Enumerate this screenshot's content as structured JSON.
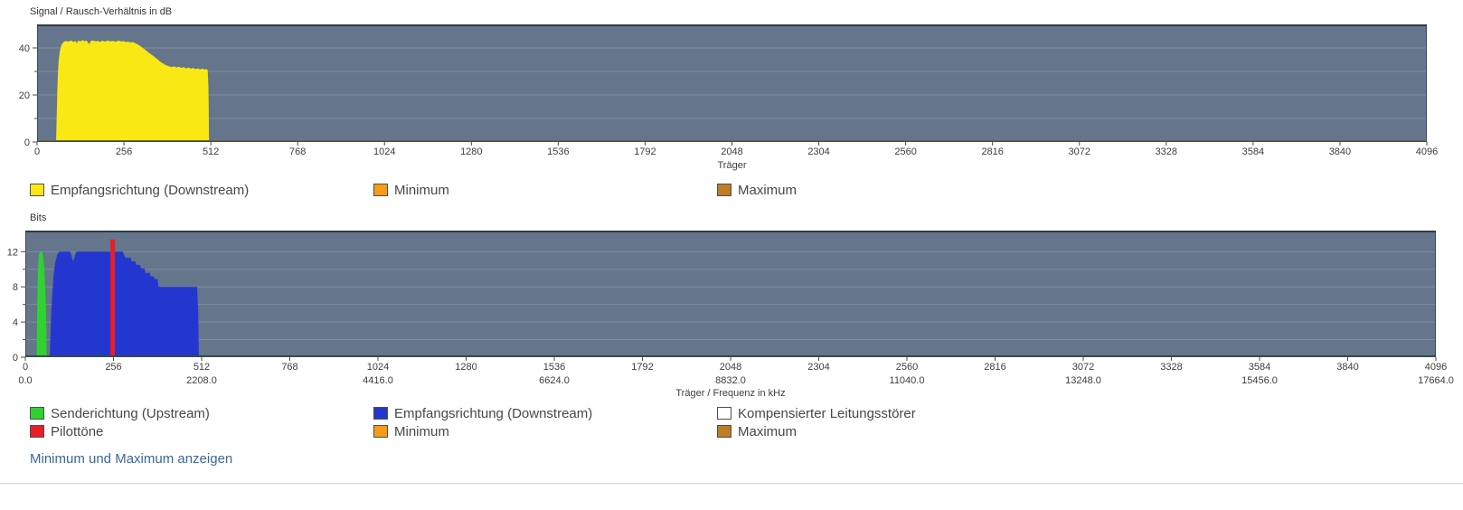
{
  "colors": {
    "plot_background": "#64758c",
    "plot_border": "#3f4956",
    "plot_border_top": "#313a46",
    "link": "#3a689b",
    "yellow": "#f9e814",
    "green": "#2fd32f",
    "blue": "#2337d0",
    "red": "#ec1c24",
    "orange": "#f59c14",
    "brown": "#c07c22",
    "white": "#ffffff"
  },
  "link": {
    "label": "Minimum und Maximum anzeigen"
  },
  "chart_data": [
    {
      "type": "area",
      "title": "Signal / Rausch-Verhältnis in dB",
      "xlabel": "Träger",
      "ylabel": "Signal / Rausch-Verhältnis in dB",
      "xlim": [
        0,
        4096
      ],
      "ylim": [
        0,
        50
      ],
      "xticks": [
        0,
        256,
        512,
        768,
        1024,
        1280,
        1536,
        1792,
        2048,
        2304,
        2560,
        2816,
        3072,
        3328,
        3584,
        3840,
        4096
      ],
      "yticks": [
        0,
        20,
        40
      ],
      "yticks_minor": [
        10,
        30
      ],
      "grid": "horizontal",
      "legend_position": "below",
      "baseline_color": "#6f682b",
      "series": [
        {
          "name": "Empfangsrichtung (Downstream)",
          "color": "#f9e814",
          "type": "area",
          "points": [
            [
              56,
              0
            ],
            [
              58,
              12
            ],
            [
              60,
              24
            ],
            [
              62,
              31
            ],
            [
              64,
              35
            ],
            [
              67,
              38.5
            ],
            [
              70,
              40.5
            ],
            [
              74,
              41.8
            ],
            [
              79,
              42.6
            ],
            [
              85,
              43
            ],
            [
              92,
              42.7
            ],
            [
              100,
              43.1
            ],
            [
              108,
              42.6
            ],
            [
              114,
              43
            ],
            [
              117,
              41.9
            ],
            [
              121,
              43.1
            ],
            [
              128,
              42.8
            ],
            [
              134,
              43.3
            ],
            [
              140,
              42.9
            ],
            [
              146,
              43.1
            ],
            [
              150,
              42.2
            ],
            [
              154,
              41.6
            ],
            [
              158,
              43
            ],
            [
              165,
              43.2
            ],
            [
              172,
              42.8
            ],
            [
              180,
              43
            ],
            [
              186,
              42.5
            ],
            [
              192,
              43.1
            ],
            [
              200,
              42.7
            ],
            [
              208,
              43.2
            ],
            [
              216,
              42.8
            ],
            [
              224,
              43
            ],
            [
              232,
              42.6
            ],
            [
              240,
              43.1
            ],
            [
              248,
              42.8
            ],
            [
              256,
              42.9
            ],
            [
              262,
              42.5
            ],
            [
              268,
              42.7
            ],
            [
              275,
              42.3
            ],
            [
              282,
              42.5
            ],
            [
              288,
              42.1
            ],
            [
              295,
              41.6
            ],
            [
              302,
              41
            ],
            [
              310,
              40.2
            ],
            [
              318,
              39.3
            ],
            [
              326,
              38.4
            ],
            [
              334,
              37.5
            ],
            [
              342,
              36.6
            ],
            [
              349,
              35.8
            ],
            [
              356,
              35
            ],
            [
              363,
              34.2
            ],
            [
              370,
              33.5
            ],
            [
              377,
              32.9
            ],
            [
              384,
              32.4
            ],
            [
              390,
              32.1
            ],
            [
              397,
              31.9
            ],
            [
              404,
              32.2
            ],
            [
              411,
              31.7
            ],
            [
              418,
              32
            ],
            [
              425,
              31.5
            ],
            [
              432,
              31.8
            ],
            [
              439,
              31.3
            ],
            [
              446,
              31.6
            ],
            [
              453,
              31.2
            ],
            [
              460,
              31.5
            ],
            [
              467,
              31
            ],
            [
              474,
              31.3
            ],
            [
              481,
              30.9
            ],
            [
              488,
              31.2
            ],
            [
              494,
              30.8
            ],
            [
              499,
              31
            ],
            [
              503,
              30.6
            ],
            [
              505,
              24
            ],
            [
              506,
              12
            ],
            [
              507,
              0
            ]
          ]
        }
      ],
      "legend": [
        {
          "label": "Empfangsrichtung (Downstream)",
          "color": "#f9e814"
        },
        {
          "label": "Minimum",
          "color": "#f59c14"
        },
        {
          "label": "Maximum",
          "color": "#c07c22"
        }
      ]
    },
    {
      "type": "area",
      "title": "Bits",
      "xlabel": "Träger / Frequenz in kHz",
      "ylabel": "Bits",
      "xlim": [
        0,
        4096
      ],
      "ylim": [
        0,
        14.4
      ],
      "xticks": [
        0,
        256,
        512,
        768,
        1024,
        1280,
        1536,
        1792,
        2048,
        2304,
        2560,
        2816,
        3072,
        3328,
        3584,
        3840,
        4096
      ],
      "freq_ticks": [
        {
          "carrier": 0,
          "label": "0.0"
        },
        {
          "carrier": 512,
          "label": "2208.0"
        },
        {
          "carrier": 1024,
          "label": "4416.0"
        },
        {
          "carrier": 1536,
          "label": "6624.0"
        },
        {
          "carrier": 2048,
          "label": "8832.0"
        },
        {
          "carrier": 2560,
          "label": "11040.0"
        },
        {
          "carrier": 3072,
          "label": "13248.0"
        },
        {
          "carrier": 3584,
          "label": "15456.0"
        },
        {
          "carrier": 4096,
          "label": "17664.0"
        }
      ],
      "yticks": [
        0,
        4,
        8,
        12
      ],
      "yticks_minor": [
        2,
        6,
        10
      ],
      "grid": "horizontal",
      "legend_position": "below",
      "baseline_color": "#2a5138",
      "series": [
        {
          "name": "Senderichtung (Upstream)",
          "color": "#2fd32f",
          "type": "area",
          "points": [
            [
              33,
              0
            ],
            [
              34,
              3
            ],
            [
              35,
              6.5
            ],
            [
              36,
              9
            ],
            [
              38,
              10.8
            ],
            [
              40,
              11.7
            ],
            [
              43,
              12
            ],
            [
              49,
              12
            ],
            [
              52,
              11.5
            ],
            [
              55,
              10.3
            ],
            [
              57,
              8.8
            ],
            [
              59,
              6.5
            ],
            [
              61,
              3.5
            ],
            [
              62,
              0
            ]
          ]
        },
        {
          "name": "Empfangsrichtung (Downstream)",
          "color": "#2337d0",
          "type": "area",
          "points": [
            [
              71,
              0
            ],
            [
              73,
              2.5
            ],
            [
              75,
              4.8
            ],
            [
              78,
              7
            ],
            [
              82,
              9.2
            ],
            [
              87,
              10.8
            ],
            [
              93,
              11.7
            ],
            [
              99,
              12
            ],
            [
              131,
              12
            ],
            [
              135,
              11.4
            ],
            [
              139,
              10.9
            ],
            [
              143,
              11.4
            ],
            [
              148,
              12
            ],
            [
              239,
              12
            ],
            [
              283,
              12
            ],
            [
              287,
              11.6
            ],
            [
              291,
              11.3
            ],
            [
              306,
              11.3
            ],
            [
              309,
              10.9
            ],
            [
              319,
              10.9
            ],
            [
              322,
              10.5
            ],
            [
              333,
              10.5
            ],
            [
              336,
              10.1
            ],
            [
              346,
              10.1
            ],
            [
              349,
              9.6
            ],
            [
              361,
              9.6
            ],
            [
              364,
              9.2
            ],
            [
              373,
              9.2
            ],
            [
              376,
              8.9
            ],
            [
              384,
              8.9
            ],
            [
              387,
              8
            ],
            [
              398,
              8
            ],
            [
              499,
              8
            ],
            [
              502,
              5
            ],
            [
              504,
              0
            ]
          ]
        },
        {
          "name": "Pilottöne",
          "color": "#ec1c24",
          "type": "bar",
          "x_range": [
            247,
            260
          ],
          "value": 13.4
        }
      ],
      "legend": [
        {
          "label": "Senderichtung (Upstream)",
          "color": "#2fd32f"
        },
        {
          "label": "Empfangsrichtung (Downstream)",
          "color": "#2337d0"
        },
        {
          "label": "Kompensierter Leitungsstörer",
          "color": "#ffffff"
        },
        {
          "label": "Pilottöne",
          "color": "#ec1c24"
        },
        {
          "label": "Minimum",
          "color": "#f59c14"
        },
        {
          "label": "Maximum",
          "color": "#c07c22"
        }
      ]
    }
  ]
}
